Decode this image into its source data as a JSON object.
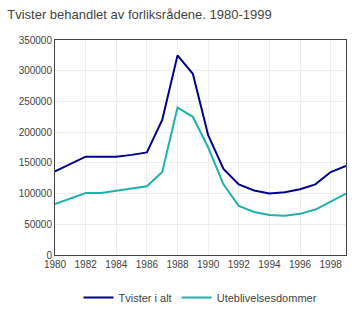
{
  "chart_data": {
    "type": "line",
    "title": "Tvister behandlet av forliksrådene. 1980-1999",
    "x": [
      1980,
      1981,
      1982,
      1983,
      1984,
      1985,
      1986,
      1987,
      1988,
      1989,
      1990,
      1991,
      1992,
      1993,
      1994,
      1995,
      1996,
      1997,
      1998,
      1999
    ],
    "series": [
      {
        "name": "Tvister i alt",
        "color": "#00008B",
        "values": [
          136000,
          148000,
          160000,
          160000,
          160000,
          163000,
          167000,
          220000,
          325000,
          295000,
          195000,
          140000,
          115000,
          105000,
          100000,
          102000,
          107000,
          115000,
          135000,
          145000
        ]
      },
      {
        "name": "Uteblivelsesdommer",
        "color": "#20B2AA",
        "values": [
          83000,
          92000,
          101000,
          101000,
          105000,
          109000,
          112000,
          135000,
          240000,
          225000,
          175000,
          115000,
          80000,
          70000,
          65000,
          64000,
          67000,
          74000,
          87000,
          100000
        ]
      }
    ],
    "xlim": [
      1980,
      1999
    ],
    "xticks": [
      1980,
      1982,
      1984,
      1986,
      1988,
      1990,
      1992,
      1994,
      1996,
      1998
    ],
    "ylim": [
      0,
      350000
    ],
    "yticks": [
      0,
      50000,
      100000,
      150000,
      200000,
      250000,
      300000,
      350000
    ],
    "grid": true,
    "legend": "bottom"
  }
}
